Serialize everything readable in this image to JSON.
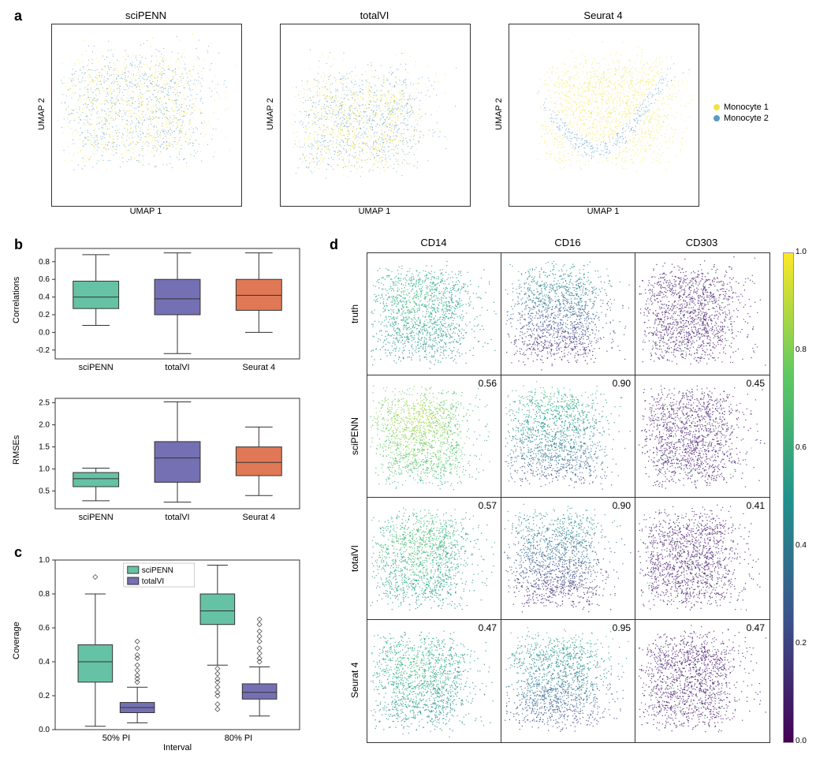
{
  "panels": {
    "a": {
      "label": "a",
      "xlabel": "UMAP 1",
      "ylabel": "UMAP 2",
      "plots": [
        {
          "title": "sciPENN"
        },
        {
          "title": "totalVI"
        },
        {
          "title": "Seurat 4"
        }
      ],
      "legend": [
        {
          "label": "Monocyte 1",
          "color": "#f0e442"
        },
        {
          "label": "Monocyte 2",
          "color": "#5a9bc4"
        }
      ],
      "colors": {
        "m1": "#f0e442",
        "m2": "#5a9bc4"
      },
      "box_border": "#333333",
      "point_size": 0.6
    },
    "b": {
      "label": "b",
      "plots": [
        {
          "ylabel": "Correlations",
          "ylim": [
            -0.3,
            0.95
          ],
          "yticks": [
            -0.2,
            0.0,
            0.2,
            0.4,
            0.6,
            0.8
          ],
          "categories": [
            "sciPENN",
            "totalVI",
            "Seurat 4"
          ],
          "boxes": [
            {
              "q1": 0.27,
              "med": 0.4,
              "q3": 0.58,
              "wlo": 0.08,
              "whi": 0.88,
              "color": "#66c2a5"
            },
            {
              "q1": 0.2,
              "med": 0.38,
              "q3": 0.6,
              "wlo": -0.24,
              "whi": 0.9,
              "color": "#7570b3"
            },
            {
              "q1": 0.25,
              "med": 0.42,
              "q3": 0.6,
              "wlo": 0.0,
              "whi": 0.9,
              "color": "#e07856"
            }
          ]
        },
        {
          "ylabel": "RMSEs",
          "ylim": [
            0.1,
            2.6
          ],
          "yticks": [
            0.5,
            1.0,
            1.5,
            2.0,
            2.5
          ],
          "categories": [
            "sciPENN",
            "totalVI",
            "Seurat 4"
          ],
          "boxes": [
            {
              "q1": 0.6,
              "med": 0.78,
              "q3": 0.92,
              "wlo": 0.28,
              "whi": 1.02,
              "color": "#66c2a5"
            },
            {
              "q1": 0.7,
              "med": 1.25,
              "q3": 1.62,
              "wlo": 0.25,
              "whi": 2.52,
              "color": "#7570b3"
            },
            {
              "q1": 0.85,
              "med": 1.15,
              "q3": 1.5,
              "wlo": 0.4,
              "whi": 1.95,
              "color": "#e07856"
            }
          ]
        }
      ]
    },
    "c": {
      "label": "c",
      "ylabel": "Coverage",
      "xlabel": "Interval",
      "ylim": [
        0.0,
        1.0
      ],
      "yticks": [
        0.0,
        0.2,
        0.4,
        0.6,
        0.8,
        1.0
      ],
      "categories": [
        "50% PI",
        "80% PI"
      ],
      "legend": [
        {
          "label": "sciPENN",
          "color": "#66c2a5"
        },
        {
          "label": "totalVI",
          "color": "#7570b3"
        }
      ],
      "groups": [
        [
          {
            "q1": 0.28,
            "med": 0.4,
            "q3": 0.5,
            "wlo": 0.02,
            "whi": 0.8,
            "color": "#66c2a5",
            "outliers": [
              0.9
            ]
          },
          {
            "q1": 0.1,
            "med": 0.13,
            "q3": 0.16,
            "wlo": 0.04,
            "whi": 0.25,
            "color": "#7570b3",
            "outliers": [
              0.28,
              0.3,
              0.32,
              0.35,
              0.38,
              0.42,
              0.44,
              0.48,
              0.52
            ]
          }
        ],
        [
          {
            "q1": 0.62,
            "med": 0.7,
            "q3": 0.8,
            "wlo": 0.38,
            "whi": 0.97,
            "color": "#66c2a5",
            "outliers": [
              0.12,
              0.15,
              0.2,
              0.22,
              0.25,
              0.28,
              0.3,
              0.33,
              0.36
            ]
          },
          {
            "q1": 0.18,
            "med": 0.22,
            "q3": 0.27,
            "wlo": 0.08,
            "whi": 0.37,
            "color": "#7570b3",
            "outliers": [
              0.4,
              0.42,
              0.45,
              0.48,
              0.52,
              0.55,
              0.58,
              0.62,
              0.65
            ]
          }
        ]
      ]
    },
    "d": {
      "label": "d",
      "columns": [
        "CD14",
        "CD16",
        "CD303"
      ],
      "rows": [
        "truth",
        "sciPENN",
        "totalVI",
        "Seurat 4"
      ],
      "values": [
        [
          null,
          null,
          null
        ],
        [
          "0.56",
          "0.90",
          "0.45"
        ],
        [
          "0.57",
          "0.90",
          "0.41"
        ],
        [
          "0.47",
          "0.95",
          "0.47"
        ]
      ],
      "colorbar": {
        "ticks": [
          "0.0",
          "0.2",
          "0.4",
          "0.6",
          "0.8",
          "1.0"
        ],
        "stops": [
          {
            "p": 0,
            "c": "#440154"
          },
          {
            "p": 25,
            "c": "#3b528b"
          },
          {
            "p": 50,
            "c": "#21918c"
          },
          {
            "p": 75,
            "c": "#5ec962"
          },
          {
            "p": 100,
            "c": "#fde725"
          }
        ]
      },
      "dominant_levels": [
        [
          0.45,
          0.3,
          0.1
        ],
        [
          0.65,
          0.45,
          0.1
        ],
        [
          0.5,
          0.3,
          0.1
        ],
        [
          0.45,
          0.4,
          0.1
        ]
      ],
      "box_border": "#333333"
    }
  },
  "viridis_stops": [
    {
      "p": 0,
      "c": "#440154"
    },
    {
      "p": 12,
      "c": "#482475"
    },
    {
      "p": 25,
      "c": "#3b528b"
    },
    {
      "p": 37,
      "c": "#2c728e"
    },
    {
      "p": 50,
      "c": "#21918c"
    },
    {
      "p": 62,
      "c": "#28ae80"
    },
    {
      "p": 75,
      "c": "#5ec962"
    },
    {
      "p": 87,
      "c": "#addc30"
    },
    {
      "p": 100,
      "c": "#fde725"
    }
  ]
}
